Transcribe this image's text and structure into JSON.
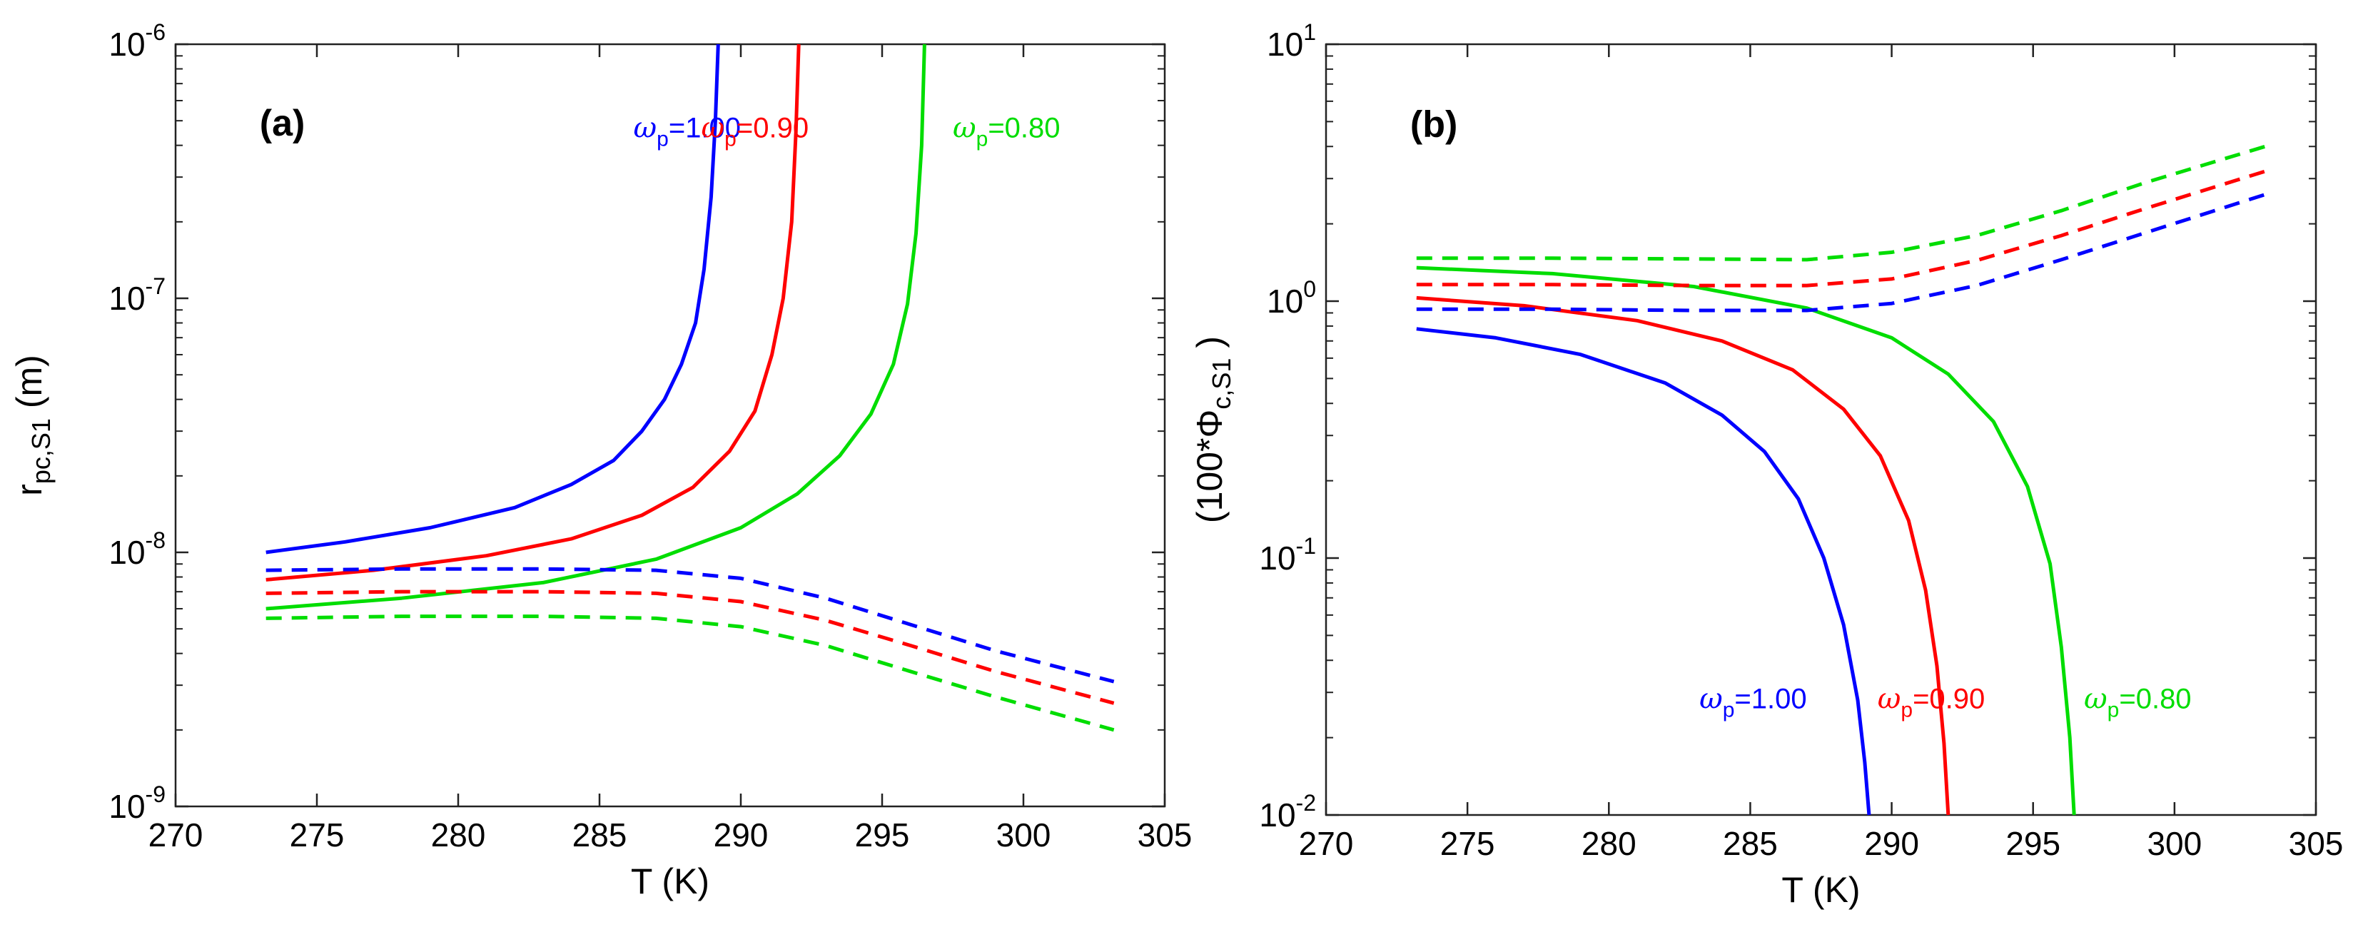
{
  "chart_data": [
    {
      "type": "line",
      "panel_label": "(a)",
      "xlabel": "T (K)",
      "ylabel": {
        "main": "r",
        "sub": "pc,S1",
        "unit": "(m)"
      },
      "yscale": "log",
      "xlim": [
        270,
        305
      ],
      "ylim": [
        1e-09,
        1e-06
      ],
      "x_ticks": [
        "270",
        "275",
        "280",
        "285",
        "290",
        "295",
        "300",
        "305"
      ],
      "y_ticks": [
        {
          "base": "10",
          "exp": "-9",
          "value": 1e-09
        },
        {
          "base": "10",
          "exp": "-8",
          "value": 1e-08
        },
        {
          "base": "10",
          "exp": "-7",
          "value": 1e-07
        },
        {
          "base": "10",
          "exp": "-6",
          "value": 1e-06
        }
      ],
      "annotations": [
        {
          "symbol": "ω",
          "sub": "p",
          "value": "=1.00",
          "color": "#0000ff",
          "at": [
            286.2,
            4.3e-07
          ]
        },
        {
          "symbol": "ω",
          "sub": "p",
          "value": "=0.90",
          "color": "#ff0000",
          "at": [
            288.6,
            4.3e-07
          ]
        },
        {
          "symbol": "ω",
          "sub": "p",
          "value": "=0.80",
          "color": "#00dd00",
          "at": [
            297.5,
            4.3e-07
          ]
        }
      ],
      "series": [
        {
          "name": "ωp=1.00 solid",
          "color": "#0000ff",
          "style": "solid",
          "x": [
            273.2,
            276,
            279,
            282,
            284,
            285.5,
            286.5,
            287.3,
            287.9,
            288.4,
            288.7,
            288.95,
            289.1,
            289.2
          ],
          "y": [
            1e-08,
            1.1e-08,
            1.25e-08,
            1.5e-08,
            1.85e-08,
            2.3e-08,
            3e-08,
            4e-08,
            5.5e-08,
            8e-08,
            1.3e-07,
            2.5e-07,
            5e-07,
            1e-06
          ]
        },
        {
          "name": "ωp=0.90 solid",
          "color": "#ff0000",
          "style": "solid",
          "x": [
            273.2,
            277,
            281,
            284,
            286.5,
            288.3,
            289.6,
            290.5,
            291.1,
            291.5,
            291.8,
            291.95,
            292.05
          ],
          "y": [
            7.8e-09,
            8.5e-09,
            9.7e-09,
            1.13e-08,
            1.4e-08,
            1.8e-08,
            2.5e-08,
            3.6e-08,
            6e-08,
            1e-07,
            2e-07,
            4.5e-07,
            1e-06
          ]
        },
        {
          "name": "ωp=0.80 solid",
          "color": "#00dd00",
          "style": "solid",
          "x": [
            273.2,
            278,
            283,
            287,
            290,
            292,
            293.5,
            294.6,
            295.4,
            295.9,
            296.2,
            296.4,
            296.5
          ],
          "y": [
            6e-09,
            6.6e-09,
            7.6e-09,
            9.4e-09,
            1.25e-08,
            1.7e-08,
            2.4e-08,
            3.5e-08,
            5.5e-08,
            9.5e-08,
            1.8e-07,
            4e-07,
            1e-06
          ]
        },
        {
          "name": "ωp=1.00 dashed",
          "color": "#0000ff",
          "style": "dashed",
          "x": [
            273.2,
            278,
            283,
            287,
            290,
            293,
            296,
            299,
            303.2
          ],
          "y": [
            8.5e-09,
            8.6e-09,
            8.6e-09,
            8.5e-09,
            7.9e-09,
            6.6e-09,
            5.2e-09,
            4.1e-09,
            3.1e-09
          ]
        },
        {
          "name": "ωp=0.90 dashed",
          "color": "#ff0000",
          "style": "dashed",
          "x": [
            273.2,
            278,
            283,
            287,
            290,
            293,
            296,
            299,
            303.2
          ],
          "y": [
            6.9e-09,
            7e-09,
            7e-09,
            6.9e-09,
            6.4e-09,
            5.4e-09,
            4.3e-09,
            3.4e-09,
            2.55e-09
          ]
        },
        {
          "name": "ωp=0.80 dashed",
          "color": "#00dd00",
          "style": "dashed",
          "x": [
            273.2,
            278,
            283,
            287,
            290,
            293,
            296,
            299,
            303.2
          ],
          "y": [
            5.5e-09,
            5.6e-09,
            5.6e-09,
            5.5e-09,
            5.1e-09,
            4.3e-09,
            3.4e-09,
            2.7e-09,
            2e-09
          ]
        }
      ]
    },
    {
      "type": "line",
      "panel_label": "(b)",
      "xlabel": "T (K)",
      "ylabel": {
        "main": "(100*Φ",
        "sub": "c,S1",
        "unit": ")"
      },
      "yscale": "log",
      "xlim": [
        270,
        305
      ],
      "ylim": [
        0.01,
        10
      ],
      "x_ticks": [
        "270",
        "275",
        "280",
        "285",
        "290",
        "295",
        "300",
        "305"
      ],
      "y_ticks": [
        {
          "base": "10",
          "exp": "-2",
          "value": 0.01
        },
        {
          "base": "10",
          "exp": "-1",
          "value": 0.1
        },
        {
          "base": "10",
          "exp": "0",
          "value": 1
        },
        {
          "base": "10",
          "exp": "1",
          "value": 10
        }
      ],
      "annotations": [
        {
          "symbol": "ω",
          "sub": "p",
          "value": "=1.00",
          "color": "#0000ff",
          "at": [
            283.2,
            0.026
          ]
        },
        {
          "symbol": "ω",
          "sub": "p",
          "value": "=0.90",
          "color": "#ff0000",
          "at": [
            289.5,
            0.026
          ]
        },
        {
          "symbol": "ω",
          "sub": "p",
          "value": "=0.80",
          "color": "#00dd00",
          "at": [
            296.8,
            0.026
          ]
        }
      ],
      "series": [
        {
          "name": "ωp=1.00 solid",
          "color": "#0000ff",
          "style": "solid",
          "x": [
            273.2,
            276,
            279,
            282,
            284,
            285.5,
            286.7,
            287.6,
            288.3,
            288.8,
            289.05,
            289.2
          ],
          "y": [
            0.78,
            0.72,
            0.62,
            0.48,
            0.36,
            0.26,
            0.17,
            0.1,
            0.055,
            0.028,
            0.016,
            0.01
          ]
        },
        {
          "name": "ωp=0.90 solid",
          "color": "#ff0000",
          "style": "solid",
          "x": [
            273.2,
            277,
            281,
            284,
            286.5,
            288.3,
            289.6,
            290.6,
            291.2,
            291.6,
            291.85,
            292.0
          ],
          "y": [
            1.03,
            0.96,
            0.84,
            0.7,
            0.54,
            0.38,
            0.25,
            0.14,
            0.075,
            0.038,
            0.019,
            0.01
          ]
        },
        {
          "name": "ωp=0.80 solid",
          "color": "#00dd00",
          "style": "solid",
          "x": [
            273.2,
            278,
            283,
            287,
            290,
            292,
            293.6,
            294.8,
            295.6,
            296.0,
            296.3,
            296.45
          ],
          "y": [
            1.35,
            1.28,
            1.14,
            0.94,
            0.72,
            0.52,
            0.34,
            0.19,
            0.095,
            0.045,
            0.02,
            0.01
          ]
        },
        {
          "name": "ωp=1.00 dashed",
          "color": "#0000ff",
          "style": "dashed",
          "x": [
            273.2,
            278,
            283,
            287,
            290,
            293,
            296,
            299,
            303.2
          ],
          "y": [
            0.93,
            0.93,
            0.92,
            0.92,
            0.98,
            1.15,
            1.45,
            1.85,
            2.6
          ]
        },
        {
          "name": "ωp=0.90 dashed",
          "color": "#ff0000",
          "style": "dashed",
          "x": [
            273.2,
            278,
            283,
            287,
            290,
            293,
            296,
            299,
            303.2
          ],
          "y": [
            1.16,
            1.16,
            1.15,
            1.15,
            1.22,
            1.44,
            1.8,
            2.3,
            3.2
          ]
        },
        {
          "name": "ωp=0.80 dashed",
          "color": "#00dd00",
          "style": "dashed",
          "x": [
            273.2,
            278,
            283,
            287,
            290,
            293,
            296,
            299,
            303.2
          ],
          "y": [
            1.47,
            1.47,
            1.46,
            1.45,
            1.55,
            1.8,
            2.25,
            2.9,
            4.0
          ]
        }
      ]
    }
  ]
}
